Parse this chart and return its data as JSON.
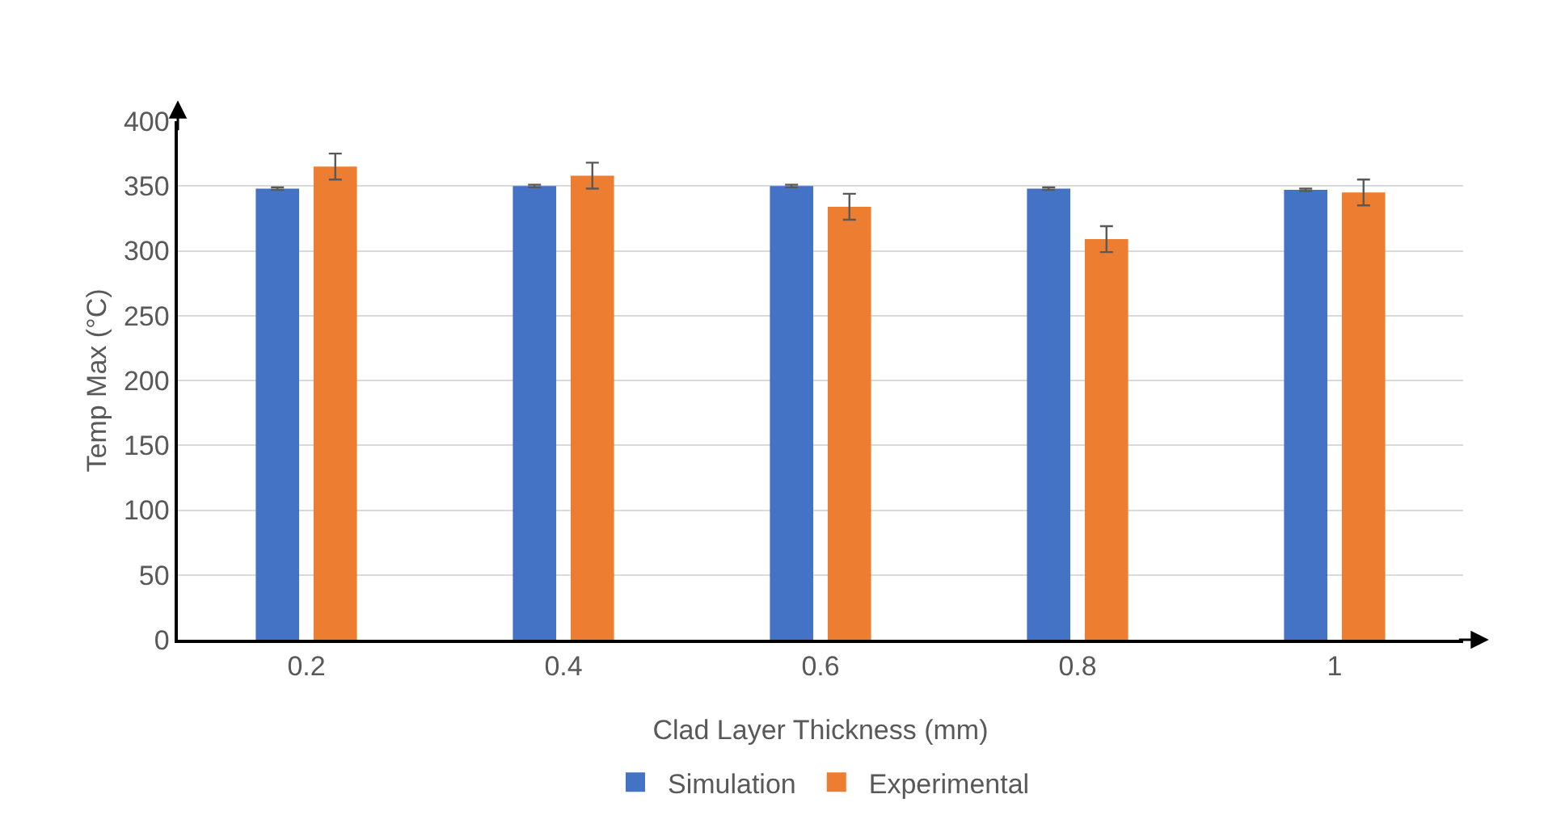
{
  "chart_data": {
    "type": "bar",
    "xlabel": "Clad Layer Thickness (mm)",
    "ylabel": "Temp Max (°C)",
    "categories": [
      "0.2",
      "0.4",
      "0.6",
      "0.8",
      "1"
    ],
    "series": [
      {
        "name": "Simulation",
        "color": "#4472c4",
        "values": [
          348,
          350,
          350,
          348,
          347
        ],
        "errors": [
          1,
          1,
          1,
          1,
          1
        ]
      },
      {
        "name": "Experimental",
        "color": "#ed7d31",
        "values": [
          365,
          358,
          334,
          309,
          345
        ],
        "errors": [
          10,
          10,
          10,
          10,
          10
        ]
      }
    ],
    "ylim": [
      0,
      400
    ],
    "yticks": [
      0,
      50,
      100,
      150,
      200,
      250,
      300,
      350,
      400
    ],
    "grid": "y",
    "legend": "bottom"
  }
}
